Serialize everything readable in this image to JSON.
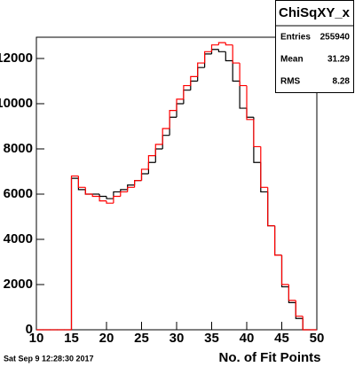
{
  "chart_data": {
    "type": "histogram",
    "stats_title": "ChiSqXY_x",
    "stats": [
      {
        "label": "Entries",
        "value": "255940"
      },
      {
        "label": "Mean",
        "value": "31.29"
      },
      {
        "label": "RMS",
        "value": "8.28"
      }
    ],
    "x_label": "No. of Fit Points",
    "footer": "Sat Sep  9 12:28:30 2017",
    "bins": [
      10,
      11,
      12,
      13,
      14,
      15,
      16,
      17,
      18,
      19,
      20,
      21,
      22,
      23,
      24,
      25,
      26,
      27,
      28,
      29,
      30,
      31,
      32,
      33,
      34,
      35,
      36,
      37,
      38,
      39,
      40,
      41,
      42,
      43,
      44,
      45,
      46,
      47,
      48,
      49,
      50
    ],
    "series": [
      {
        "color": "#000000",
        "values": [
          0,
          0,
          0,
          0,
          0,
          6700,
          6200,
          6000,
          6000,
          5900,
          5800,
          6100,
          6200,
          6400,
          6600,
          6900,
          7400,
          8000,
          8600,
          9400,
          10000,
          10600,
          11000,
          11600,
          12200,
          12400,
          12300,
          11900,
          11000,
          9800,
          9400,
          7400,
          6100,
          4600,
          3300,
          1900,
          1200,
          500,
          0,
          0
        ]
      },
      {
        "color": "#ff0000",
        "values": [
          0,
          0,
          0,
          0,
          0,
          6800,
          6300,
          6000,
          5900,
          5700,
          5600,
          5900,
          6100,
          6300,
          6600,
          7100,
          7700,
          8200,
          8900,
          9700,
          10200,
          10800,
          11200,
          11800,
          12300,
          12600,
          12700,
          12600,
          11800,
          10800,
          9300,
          8100,
          6300,
          4600,
          3300,
          2000,
          1300,
          600,
          0,
          0
        ]
      }
    ],
    "xlim": [
      10,
      50
    ],
    "xticks": [
      10,
      15,
      20,
      25,
      30,
      35,
      40,
      45,
      50
    ],
    "ylim": [
      0,
      12940
    ],
    "yticks": [
      0,
      2000,
      4000,
      6000,
      8000,
      10000,
      12000
    ]
  }
}
